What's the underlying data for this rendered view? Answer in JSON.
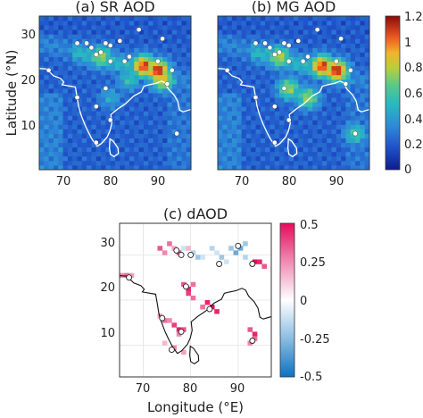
{
  "chart_data": [
    {
      "type": "heatmap",
      "title": "(a) SR AOD",
      "xlabel": "",
      "ylabel": "Latitude (°N)",
      "xticks": [
        "70",
        "80",
        "90"
      ],
      "yticks": [
        "10",
        "20",
        "30"
      ],
      "xlim": [
        65,
        97
      ],
      "ylim": [
        3,
        37
      ],
      "station_markers": [
        [
          67,
          25
        ],
        [
          73,
          31
        ],
        [
          75,
          31
        ],
        [
          76,
          30
        ],
        [
          77,
          28.5
        ],
        [
          78,
          29
        ],
        [
          79,
          31
        ],
        [
          80,
          27
        ],
        [
          80,
          30.5
        ],
        [
          82,
          31.5
        ],
        [
          83,
          27
        ],
        [
          84,
          28
        ],
        [
          86,
          34
        ],
        [
          90,
          27
        ],
        [
          91,
          32
        ],
        [
          93,
          25
        ],
        [
          92,
          22
        ],
        [
          73,
          19
        ],
        [
          77,
          17
        ],
        [
          79,
          21
        ],
        [
          80,
          14
        ],
        [
          77,
          9
        ],
        [
          94,
          11
        ]
      ],
      "hotspots": [
        {
          "lon": 78,
          "lat": 28,
          "aod": 0.75
        },
        {
          "lon": 87,
          "lat": 26,
          "aod": 1.1
        },
        {
          "lon": 90,
          "lat": 25,
          "aod": 1.15
        },
        {
          "lon": 91,
          "lat": 23,
          "aod": 0.9
        },
        {
          "lon": 84,
          "lat": 23,
          "aod": 0.55
        },
        {
          "lon": 80,
          "lat": 19,
          "aod": 0.45
        }
      ]
    },
    {
      "type": "heatmap",
      "title": "(b) MG AOD",
      "xlabel": "",
      "ylabel": "",
      "xticks": [
        "70",
        "80",
        "90"
      ],
      "yticks": [],
      "xlim": [
        65,
        97
      ],
      "ylim": [
        3,
        37
      ],
      "station_markers": [
        [
          67,
          25
        ],
        [
          73,
          31
        ],
        [
          75,
          31
        ],
        [
          76,
          30
        ],
        [
          77,
          28.5
        ],
        [
          78,
          29
        ],
        [
          79,
          31
        ],
        [
          80,
          27
        ],
        [
          80,
          30.5
        ],
        [
          82,
          31.5
        ],
        [
          83,
          27
        ],
        [
          84,
          28
        ],
        [
          86,
          34
        ],
        [
          90,
          27
        ],
        [
          91,
          32
        ],
        [
          93,
          25
        ],
        [
          92,
          22
        ],
        [
          73,
          19
        ],
        [
          77,
          17
        ],
        [
          79,
          21
        ],
        [
          80,
          14
        ],
        [
          77,
          9
        ],
        [
          94,
          11
        ]
      ],
      "hotspots": [
        {
          "lon": 78,
          "lat": 28,
          "aod": 0.8
        },
        {
          "lon": 87,
          "lat": 26,
          "aod": 1.1
        },
        {
          "lon": 90,
          "lat": 25,
          "aod": 1.15
        },
        {
          "lon": 80,
          "lat": 21,
          "aod": 0.75
        },
        {
          "lon": 84,
          "lat": 19,
          "aod": 0.75
        },
        {
          "lon": 94,
          "lat": 11,
          "aod": 0.6
        }
      ]
    },
    {
      "type": "heatmap",
      "title": "(c) dAOD",
      "xlabel": "Longitude (°E)",
      "ylabel": "",
      "xticks": [
        "70",
        "80",
        "90"
      ],
      "yticks": [
        "10",
        "20",
        "30"
      ],
      "xlim": [
        65,
        97
      ],
      "ylim": [
        3,
        37
      ],
      "station_markers": [
        [
          67,
          25
        ],
        [
          77,
          31
        ],
        [
          78,
          30
        ],
        [
          80,
          30
        ],
        [
          86,
          28
        ],
        [
          90,
          32
        ],
        [
          93,
          28
        ],
        [
          79,
          23
        ],
        [
          84,
          18
        ],
        [
          74,
          16
        ],
        [
          78,
          13
        ],
        [
          76,
          9
        ],
        [
          93,
          11
        ]
      ],
      "cells": [
        [
          65,
          25,
          0.25
        ],
        [
          66,
          25,
          0.3
        ],
        [
          67,
          25,
          0.2
        ],
        [
          73,
          31,
          0.35
        ],
        [
          74,
          30,
          0.25
        ],
        [
          75,
          32,
          0.3
        ],
        [
          76,
          31,
          0.2
        ],
        [
          77,
          30,
          0.35
        ],
        [
          78,
          31,
          -0.1
        ],
        [
          79,
          31,
          0.15
        ],
        [
          80,
          30,
          -0.15
        ],
        [
          81,
          29,
          -0.2
        ],
        [
          82,
          29,
          -0.1
        ],
        [
          84,
          31,
          -0.15
        ],
        [
          85,
          30,
          -0.1
        ],
        [
          86,
          29,
          -0.2
        ],
        [
          87,
          28,
          -0.1
        ],
        [
          88,
          31,
          -0.2
        ],
        [
          89,
          30,
          -0.3
        ],
        [
          90,
          31,
          -0.3
        ],
        [
          91,
          32,
          -0.2
        ],
        [
          91,
          29,
          -0.15
        ],
        [
          93,
          28,
          0.5
        ],
        [
          94,
          28,
          0.45
        ],
        [
          95,
          27,
          0.35
        ],
        [
          78,
          23,
          0.35
        ],
        [
          79,
          22,
          0.45
        ],
        [
          80,
          23,
          0.3
        ],
        [
          79,
          21,
          0.4
        ],
        [
          80,
          20,
          0.3
        ],
        [
          83,
          19,
          0.45
        ],
        [
          84,
          18,
          0.5
        ],
        [
          85,
          17,
          0.45
        ],
        [
          82,
          18,
          0.3
        ],
        [
          73,
          16,
          0.2
        ],
        [
          74,
          15,
          0.3
        ],
        [
          75,
          15,
          0.25
        ],
        [
          76,
          14,
          0.4
        ],
        [
          77,
          13,
          0.45
        ],
        [
          78,
          13,
          0.35
        ],
        [
          77,
          12,
          0.25
        ],
        [
          74,
          10,
          0.15
        ],
        [
          76,
          9,
          0.25
        ],
        [
          78,
          8,
          0.2
        ],
        [
          92,
          13,
          0.35
        ],
        [
          93,
          12,
          0.45
        ],
        [
          93,
          11,
          0.3
        ],
        [
          92,
          10,
          0.25
        ]
      ]
    }
  ],
  "colorbars": [
    {
      "ticks": [
        "1.2",
        "1",
        "0.8",
        "0.6",
        "0.4",
        "0.2",
        "0"
      ],
      "range": [
        0,
        1.2
      ]
    },
    {
      "ticks": [
        "0.5",
        "0.25",
        "0",
        "-0.25",
        "-0.5"
      ],
      "range": [
        -0.5,
        0.5
      ]
    }
  ],
  "colors": {
    "aod_low": "#0d1d8c",
    "aod_high": "#8b0a0a",
    "diff_pos": "#e8246b",
    "diff_neg": "#3b8fcf",
    "coast_on_map": "#ffffff",
    "coast_on_white": "#111111"
  }
}
